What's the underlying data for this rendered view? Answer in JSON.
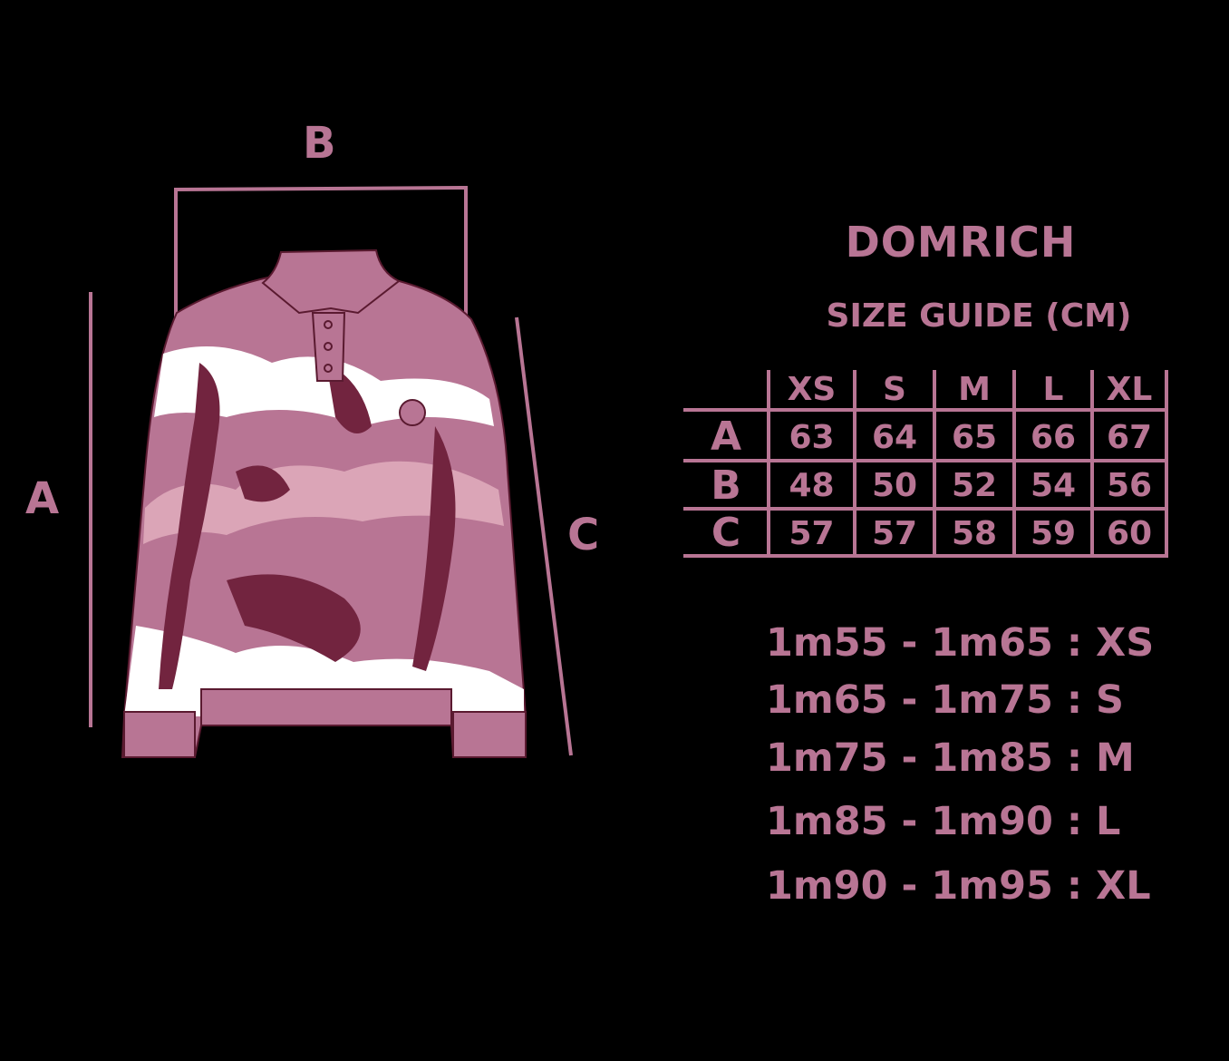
{
  "brand": "DOMRICH",
  "subtitle": "SIZE GUIDE (CM)",
  "accent_color": "#b87594",
  "dimension_labels": {
    "a": "A",
    "b": "B",
    "c": "C"
  },
  "table": {
    "columns": [
      "XS",
      "S",
      "M",
      "L",
      "XL"
    ],
    "rows": [
      {
        "label": "A",
        "values": [
          "63",
          "64",
          "65",
          "66",
          "67"
        ]
      },
      {
        "label": "B",
        "values": [
          "48",
          "50",
          "52",
          "54",
          "56"
        ]
      },
      {
        "label": "C",
        "values": [
          "57",
          "57",
          "58",
          "59",
          "60"
        ]
      }
    ]
  },
  "height_fit": [
    "1m55 - 1m65 : XS",
    "1m65 - 1m75 : S",
    "1m75 - 1m85 : M",
    "1m85 - 1m90 : L",
    "1m90 - 1m95 : XL"
  ]
}
